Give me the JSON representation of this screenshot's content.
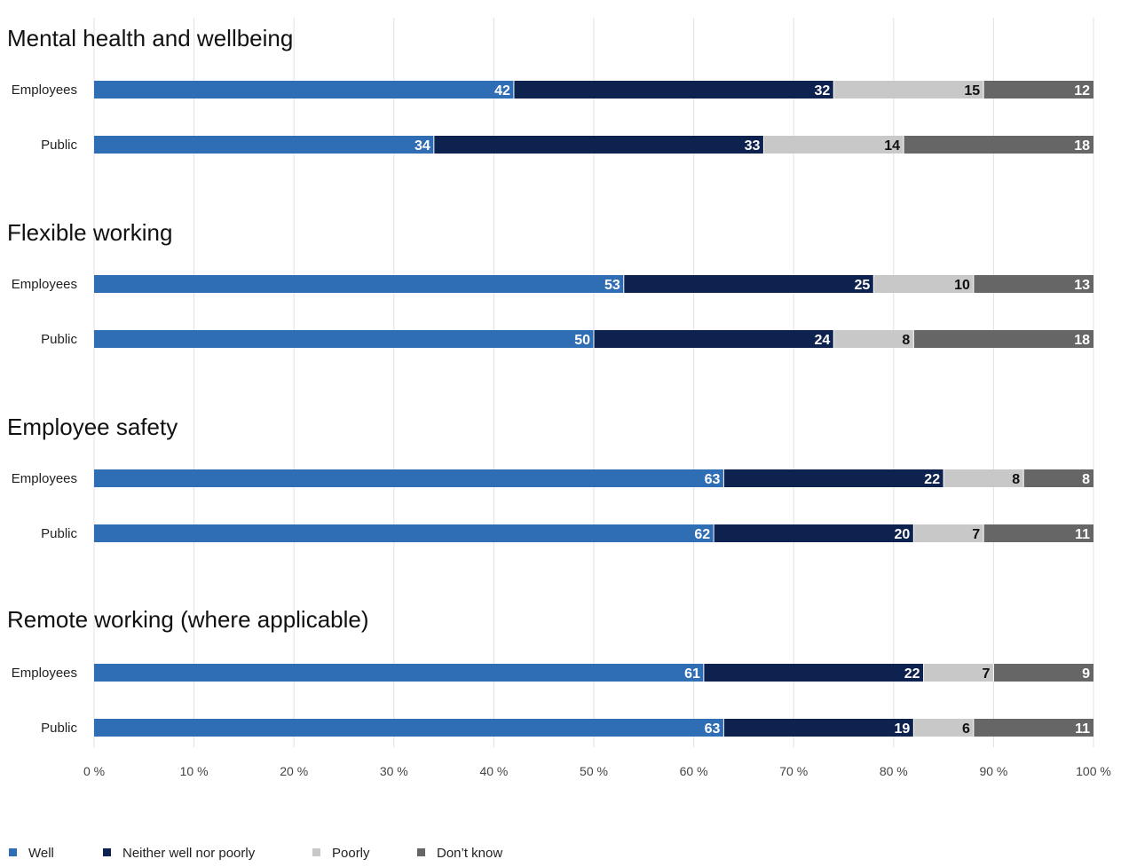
{
  "chart_data": {
    "type": "bar",
    "orientation": "horizontal",
    "stacked": true,
    "unit": "%",
    "xlim": [
      0,
      100
    ],
    "grid": true,
    "legend_position": "bottom-left",
    "x_ticks": [
      "0 %",
      "10 %",
      "20 %",
      "30 %",
      "40 %",
      "50 %",
      "60 %",
      "70 %",
      "80 %",
      "90 %",
      "100 %"
    ],
    "colors": {
      "Well": "#2f6db5",
      "Neither well nor poorly": "#0e2250",
      "Poorly": "#c8c8c8",
      "Don't know": "#666666"
    },
    "label_colors": {
      "Well": "#ffffff",
      "Neither well nor poorly": "#ffffff",
      "Poorly": "#111111",
      "Don't know": "#ffffff"
    },
    "legend": [
      {
        "name": "Well",
        "color": "#2f6db5"
      },
      {
        "name": "Neither well nor poorly",
        "color": "#0e2250"
      },
      {
        "name": "Poorly",
        "color": "#c8c8c8"
      },
      {
        "name": "Don’t know",
        "color": "#666666"
      }
    ],
    "series_names": [
      "Well",
      "Neither well nor poorly",
      "Poorly",
      "Don't know"
    ],
    "groups": [
      {
        "title": "Mental health and wellbeing",
        "rows": [
          {
            "label": "Employees",
            "values": [
              42,
              32,
              15,
              12
            ]
          },
          {
            "label": "Public",
            "values": [
              34,
              33,
              14,
              18
            ]
          }
        ]
      },
      {
        "title": "Flexible working",
        "rows": [
          {
            "label": "Employees",
            "values": [
              53,
              25,
              10,
              13
            ]
          },
          {
            "label": "Public",
            "values": [
              50,
              24,
              8,
              18
            ]
          }
        ]
      },
      {
        "title": "Employee safety",
        "rows": [
          {
            "label": "Employees",
            "values": [
              63,
              22,
              8,
              8
            ]
          },
          {
            "label": "Public",
            "values": [
              62,
              20,
              7,
              11
            ]
          }
        ]
      },
      {
        "title": "Remote working (where applicable)",
        "rows": [
          {
            "label": "Employees",
            "values": [
              61,
              22,
              7,
              9
            ]
          },
          {
            "label": "Public",
            "values": [
              63,
              19,
              6,
              11
            ]
          }
        ]
      }
    ]
  }
}
